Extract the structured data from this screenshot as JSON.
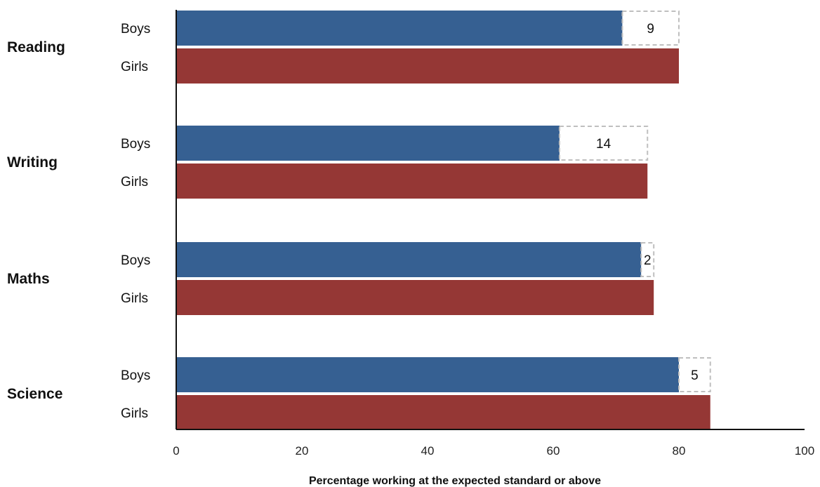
{
  "chart_data": {
    "type": "bar",
    "orientation": "horizontal",
    "categories": [
      "Reading",
      "Writing",
      "Maths",
      "Science"
    ],
    "subgroups": [
      "Boys",
      "Girls"
    ],
    "series": [
      {
        "name": "Boys",
        "values": [
          71,
          61,
          74,
          80
        ],
        "color": "#366092"
      },
      {
        "name": "Girls",
        "values": [
          80,
          75,
          76,
          85
        ],
        "color": "#953735"
      }
    ],
    "gaps": [
      9,
      14,
      2,
      5
    ],
    "gap_style": "dashed grey outline",
    "xlabel": "Percentage working at the expected standard or above",
    "xlim": [
      0,
      100
    ],
    "xticks": [
      "0",
      "20",
      "40",
      "60",
      "80",
      "100"
    ],
    "grid": false,
    "legend": "none"
  }
}
